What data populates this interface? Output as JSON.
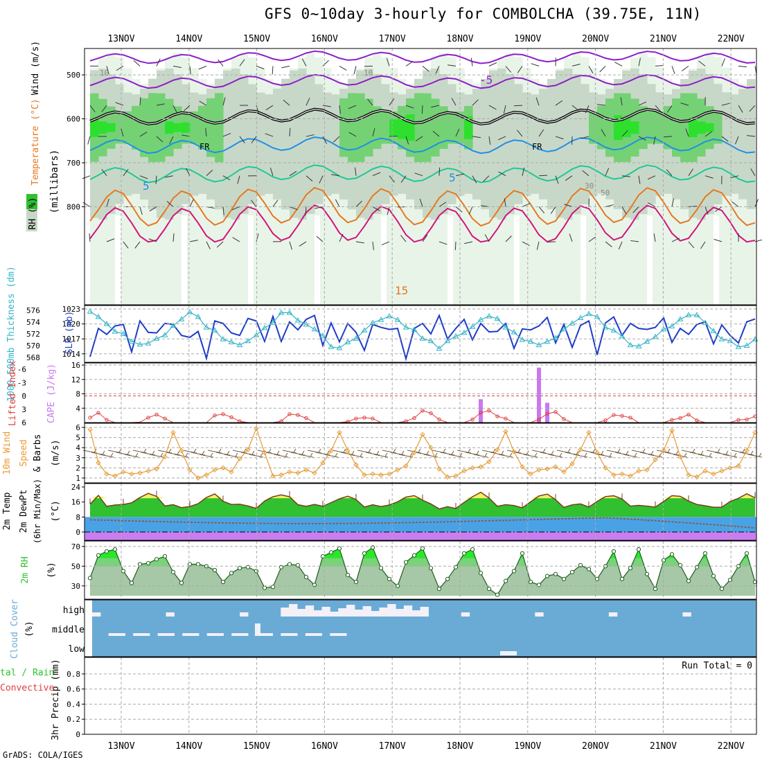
{
  "title": "GFS 0~10day 3-hourly for COMBOLCHA (39.75E, 11N)",
  "footer": "GrADS: COLA/IGES",
  "dates": [
    "13NOV",
    "14NOV",
    "15NOV",
    "16NOV",
    "17NOV",
    "18NOV",
    "19NOV",
    "20NOV",
    "21NOV",
    "22NOV"
  ],
  "run_total_label": "Run Total = 0",
  "colors": {
    "violet": "#8c1ec8",
    "black": "#000000",
    "blue_isotherm": "#1e90e6",
    "teal_isotherm": "#1ec896",
    "orange": "#e6781e",
    "magenta": "#d2147a",
    "slp": "#1e3cc8",
    "thickness": "#32b4c8",
    "cape": "#c878f0",
    "lifted": "#e04040",
    "wind": "#e89a30",
    "rh": "#30c030",
    "cloud": "#6aabd6",
    "cloud_gap": "#f4f0f8"
  },
  "chart_data": [
    {
      "type": "contour",
      "name": "upper_air",
      "ylabel": "(millibars)",
      "side_labels": [
        "Wind (m/s)",
        "Temperature (°C)",
        "RH (%)"
      ],
      "ylim": [
        1023,
        440
      ],
      "ticks": [
        500,
        600,
        700,
        800
      ],
      "isotherms": [
        {
          "value": -10,
          "label": "",
          "base_level": 460
        },
        {
          "value": -5,
          "label": "-5",
          "base_level": 515
        },
        {
          "value": 0,
          "label": "FR",
          "base_level": 595
        },
        {
          "value": 5,
          "label": "5",
          "base_level": 660
        },
        {
          "value": 10,
          "label": "",
          "base_level": 725
        },
        {
          "value": 15,
          "label": "15",
          "base_level": 800
        },
        {
          "value": 20,
          "label": "",
          "base_level": 840
        }
      ],
      "annotations": [
        "10",
        "10",
        "30",
        "50"
      ]
    },
    {
      "type": "line",
      "name": "slp_thickness",
      "ylabel_left": "1000-500mb Thickness (dm)",
      "ylabel_right": "SLP (mb)",
      "left_ticks": [
        568,
        570,
        572,
        574,
        576
      ],
      "right_ticks": [
        1014,
        1017,
        1020,
        1023
      ],
      "series": [
        {
          "name": "SLP (mb)",
          "values": [
            1013.4,
            1019.1,
            1017.9,
            1019.6,
            1019.9,
            1014.4,
            1020.6,
            1018.3,
            1018.2,
            1020.1,
            1019.9,
            1017.7,
            1017.3,
            1018.5,
            1013.1,
            1020.6,
            1020.1,
            1018.2,
            1017.7,
            1021.1,
            1020.6,
            1016.5,
            1021.5,
            1016.5,
            1020.4,
            1018.8,
            1020.9,
            1021.7,
            1015.7,
            1020.2,
            1016.4,
            1020.1,
            1018.3,
            1014.7,
            1019.9,
            1019.3,
            1018.9,
            1019.1,
            1013.0,
            1019.1,
            1020.1,
            1018.0,
            1021.7,
            1017.0,
            1019.1,
            1020.9,
            1016.8,
            1020.1,
            1018.4,
            1018.5,
            1020.1,
            1015.1,
            1019.0,
            1018.8,
            1019.6,
            1021.3,
            1016.2,
            1019.9,
            1015.3,
            1019.7,
            1020.6,
            1013.8,
            1020.2,
            1021.4,
            1017.7,
            1020.1,
            1019.1,
            1018.9,
            1019.3,
            1021.2,
            1016.3,
            1019.1,
            1017.9,
            1019.9,
            1020.4,
            1016.0,
            1019.8,
            1017.7,
            1016.2,
            1020.4,
            1021.0
          ]
        },
        {
          "name": "1000-500mb Thickness (dm)",
          "values": [
            575.8,
            574.9,
            573.7,
            572.4,
            572.0,
            570.7,
            570.2,
            570.4,
            571.2,
            571.8,
            573.4,
            574.5,
            575.7,
            574.9,
            573.1,
            572.6,
            571.1,
            570.6,
            570.1,
            570.8,
            571.8,
            573.0,
            573.9,
            575.6,
            575.6,
            574.3,
            573.6,
            572.8,
            571.7,
            569.8,
            569.6,
            570.6,
            571.2,
            572.6,
            573.9,
            574.4,
            575.0,
            574.4,
            573.1,
            572.7,
            571.2,
            570.8,
            569.5,
            570.8,
            571.6,
            572.2,
            573.2,
            574.4,
            575.0,
            574.6,
            573.1,
            572.3,
            571.0,
            570.7,
            570.1,
            570.7,
            571.3,
            572.8,
            573.8,
            574.7,
            575.4,
            574.9,
            573.1,
            572.6,
            571.6,
            570.1,
            569.9,
            570.7,
            571.5,
            572.8,
            573.3,
            574.5,
            575.2,
            575.2,
            573.9,
            572.5,
            571.1,
            570.8,
            569.8,
            570.0,
            571.1
          ]
        }
      ]
    },
    {
      "type": "bar+line",
      "name": "cape_lifted",
      "ylabel_left": "Lifted Index",
      "ylabel_right": "CAPE (J/kg)",
      "left_ticks": [
        "-6",
        "-3",
        "0",
        "3",
        "6"
      ],
      "right_ticks": [
        "4",
        "8",
        "12",
        "16"
      ],
      "cape": {
        "indices": [
          47,
          54,
          55
        ],
        "values": [
          6.5,
          15.3,
          5.5
        ]
      },
      "lifted_index": [
        4.9,
        3.8,
        5.4,
        6.1,
        6.6,
        7.0,
        5.9,
        4.9,
        4.2,
        5.1,
        6.1,
        6.8,
        7.3,
        6.8,
        6.0,
        4.4,
        4.1,
        4.8,
        5.7,
        6.6,
        7.4,
        7.5,
        6.7,
        5.7,
        4.1,
        4.3,
        5.0,
        6.4,
        6.7,
        7.1,
        6.5,
        5.8,
        5.1,
        4.9,
        5.1,
        6.0,
        6.6,
        6.5,
        5.7,
        5.0,
        3.3,
        3.9,
        5.3,
        6.4,
        7.1,
        6.7,
        5.3,
        3.8,
        3.3,
        4.6,
        5.1,
        6.4,
        7.0,
        6.1,
        5.3,
        4.0,
        3.6,
        5.2,
        6.1,
        6.9,
        7.0,
        6.1,
        5.5,
        4.3,
        4.5,
        4.9,
        6.1,
        6.9,
        7.0,
        6.4,
        5.4,
        5.0,
        4.2,
        5.5,
        6.1,
        6.7,
        6.9,
        6.3,
        5.4,
        5.3,
        4.6
      ]
    },
    {
      "type": "line",
      "name": "wind10m",
      "ylabel": "10m Wind Speed (m/s) & Barbs",
      "ticks": [
        1,
        2,
        3,
        4,
        5,
        6
      ],
      "values": [
        5.8,
        2.5,
        1.4,
        1.2,
        1.6,
        1.4,
        1.5,
        1.7,
        1.9,
        3.1,
        5.5,
        3.7,
        1.8,
        1.0,
        1.3,
        1.8,
        2.0,
        1.6,
        2.9,
        3.8,
        5.9,
        3.5,
        1.2,
        1.3,
        1.6,
        1.5,
        1.8,
        1.5,
        2.5,
        3.7,
        5.5,
        3.7,
        2.3,
        1.3,
        1.4,
        1.3,
        1.4,
        1.8,
        2.2,
        3.5,
        5.3,
        4.0,
        1.9,
        1.1,
        1.2,
        1.7,
        2.0,
        2.1,
        2.6,
        3.8,
        5.6,
        3.6,
        2.1,
        1.4,
        1.8,
        1.9,
        2.1,
        1.6,
        2.4,
        3.8,
        5.5,
        3.5,
        2.0,
        1.3,
        1.4,
        1.2,
        1.7,
        1.8,
        2.8,
        3.7,
        5.7,
        3.1,
        1.3,
        1.1,
        1.7,
        1.4,
        1.7,
        2.0,
        2.2,
        3.7,
        5.5
      ]
    },
    {
      "type": "area",
      "name": "temp2m",
      "ylabel": "2m Temp 2m DewPt (6hr Min/Max) (°C)",
      "ticks": [
        0,
        8,
        16,
        24
      ],
      "values": [
        14.8,
        19.5,
        13.7,
        14.4,
        14.7,
        15.6,
        18.4,
        20.6,
        19.0,
        13.9,
        14.6,
        13.0,
        13.6,
        15.1,
        18.4,
        20.3,
        16.4,
        14.7,
        14.8,
        13.9,
        12.6,
        16.5,
        18.8,
        19.8,
        18.8,
        14.6,
        13.7,
        14.7,
        13.7,
        15.7,
        17.7,
        19.1,
        17.3,
        13.3,
        14.5,
        13.6,
        14.4,
        16.1,
        18.6,
        19.4,
        17.0,
        15.0,
        12.3,
        13.5,
        12.5,
        15.8,
        18.8,
        21.2,
        18.1,
        13.7,
        14.6,
        14.1,
        12.9,
        16.1,
        19.2,
        20.2,
        17.2,
        13.1,
        14.5,
        15.0,
        13.3,
        16.3,
        18.9,
        19.3,
        17.6,
        13.8,
        14.2,
        13.8,
        13.3,
        16.3,
        19.4,
        19.0,
        16.5,
        14.7,
        14.0,
        13.2,
        13.2,
        16.3,
        18.0,
        20.4,
        18.2
      ]
    },
    {
      "type": "area",
      "name": "rh2m",
      "ylabel": "2m RH (%)",
      "ticks": [
        30,
        50,
        70
      ],
      "values": [
        38,
        61,
        65,
        67,
        45,
        33,
        52,
        53,
        57,
        60,
        44,
        33,
        52,
        52,
        50,
        46,
        34,
        43,
        48,
        49,
        45,
        28,
        29,
        49,
        52,
        51,
        39,
        31,
        60,
        64,
        68,
        41,
        34,
        63,
        69,
        48,
        37,
        30,
        54,
        61,
        68,
        48,
        27,
        37,
        49,
        63,
        67,
        43,
        27,
        21,
        35,
        45,
        63,
        34,
        31,
        40,
        42,
        37,
        44,
        51,
        47,
        37,
        50,
        65,
        37,
        48,
        67,
        42,
        27,
        56,
        62,
        51,
        35,
        49,
        63,
        40,
        27,
        36,
        50,
        63,
        34
      ]
    },
    {
      "type": "heatmap",
      "name": "cloud_cover",
      "ylabel": "Cloud Cover (%)",
      "levels": [
        "high",
        "middle",
        "low"
      ]
    },
    {
      "type": "bar",
      "name": "precip",
      "ylabel": "3hr Precip (mm)",
      "ylabel_left": "Total / Rain Convective",
      "ticks": [
        "0",
        "0.2",
        "0.4",
        "0.6",
        "0.8"
      ],
      "values": []
    }
  ]
}
